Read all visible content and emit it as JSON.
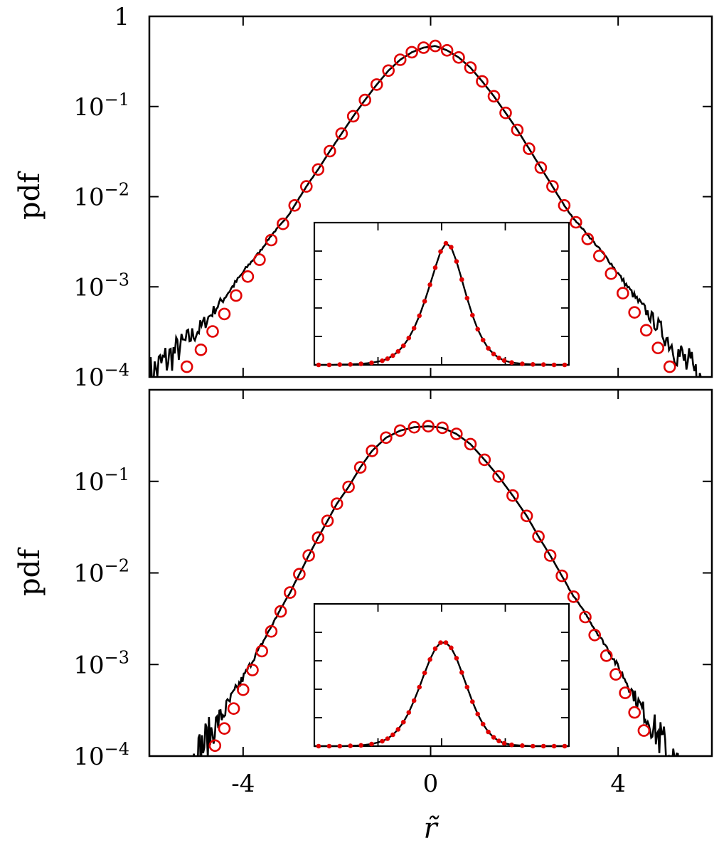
{
  "chart_data": [
    {
      "type": "line",
      "panel": "top",
      "ylabel": "pdf",
      "xlabel": "",
      "yscale": "log",
      "xlim": [
        -6,
        6
      ],
      "ylim": [
        0.0001,
        1
      ],
      "y_tick_labels": [
        {
          "value": 1,
          "base": "1",
          "exp": ""
        },
        {
          "value": 0.1,
          "base": "10",
          "exp": "−1"
        },
        {
          "value": 0.01,
          "base": "10",
          "exp": "−2"
        },
        {
          "value": 0.001,
          "base": "10",
          "exp": "−3"
        },
        {
          "value": 0.0001,
          "base": "10",
          "exp": "−4"
        }
      ],
      "x_ticks": [
        -4,
        0,
        4
      ],
      "x_tick_labels_shown": false,
      "series": [
        {
          "style": "solid-black-noisy-line",
          "color": "#000000",
          "x_range": [
            -6,
            6
          ],
          "peak": 0.47
        },
        {
          "style": "open-circles",
          "color": "#e00000",
          "x": [
            -5.2,
            -4.9,
            -4.65,
            -4.4,
            -4.15,
            -3.9,
            -3.65,
            -3.4,
            -3.15,
            -2.9,
            -2.65,
            -2.4,
            -2.15,
            -1.9,
            -1.65,
            -1.4,
            -1.15,
            -0.9,
            -0.65,
            -0.4,
            -0.15,
            0.1,
            0.35,
            0.6,
            0.85,
            1.1,
            1.35,
            1.6,
            1.85,
            2.1,
            2.35,
            2.6,
            2.85,
            3.1,
            3.35,
            3.6,
            3.85,
            4.1,
            4.35,
            4.6,
            4.85,
            5.1
          ],
          "y": [
            0.00013,
            0.0002,
            0.00032,
            0.0005,
            0.0008,
            0.0013,
            0.002,
            0.0033,
            0.005,
            0.008,
            0.013,
            0.02,
            0.032,
            0.05,
            0.078,
            0.118,
            0.175,
            0.25,
            0.33,
            0.4,
            0.45,
            0.47,
            0.42,
            0.35,
            0.27,
            0.19,
            0.13,
            0.085,
            0.055,
            0.034,
            0.021,
            0.013,
            0.008,
            0.0052,
            0.0034,
            0.0022,
            0.0014,
            0.00085,
            0.00052,
            0.00033,
            0.00021,
            0.00013
          ]
        }
      ],
      "inset": {
        "type": "line",
        "yscale": "linear",
        "xlim": [
          -6,
          6
        ],
        "ylim": [
          0,
          0.55
        ],
        "series": [
          {
            "style": "solid-black-line",
            "color": "#000000"
          },
          {
            "style": "filled-dots",
            "color": "#e00000",
            "x": [
              -5.8,
              -5.3,
              -4.8,
              -4.3,
              -3.8,
              -3.3,
              -2.8,
              -2.55,
              -2.3,
              -2.05,
              -1.8,
              -1.55,
              -1.3,
              -1.05,
              -0.8,
              -0.55,
              -0.3,
              -0.05,
              0.2,
              0.45,
              0.7,
              0.95,
              1.2,
              1.45,
              1.7,
              1.95,
              2.2,
              2.45,
              2.7,
              2.95,
              3.3,
              3.8,
              4.3,
              4.8,
              5.3,
              5.8
            ],
            "y": [
              0,
              0,
              0.001,
              0.002,
              0.004,
              0.008,
              0.016,
              0.024,
              0.036,
              0.052,
              0.074,
              0.104,
              0.142,
              0.19,
              0.246,
              0.31,
              0.376,
              0.438,
              0.47,
              0.455,
              0.4,
              0.33,
              0.258,
              0.192,
              0.138,
              0.096,
              0.064,
              0.042,
              0.027,
              0.017,
              0.009,
              0.004,
              0.002,
              0.001,
              0,
              0
            ]
          }
        ]
      }
    },
    {
      "type": "line",
      "panel": "bottom",
      "ylabel": "pdf",
      "xlabel": "r̃",
      "yscale": "log",
      "xlim": [
        -6,
        6
      ],
      "ylim": [
        0.0001,
        1
      ],
      "y_tick_labels": [
        {
          "value": 0.1,
          "base": "10",
          "exp": "−1"
        },
        {
          "value": 0.01,
          "base": "10",
          "exp": "−2"
        },
        {
          "value": 0.001,
          "base": "10",
          "exp": "−3"
        },
        {
          "value": 0.0001,
          "base": "10",
          "exp": "−4"
        }
      ],
      "x_ticks": [
        -4,
        0,
        4
      ],
      "x_tick_labels": [
        "-4",
        "0",
        "4"
      ],
      "series": [
        {
          "style": "solid-black-noisy-line",
          "color": "#000000",
          "x_range": [
            -5.1,
            5.3
          ],
          "peak": 0.4
        },
        {
          "style": "open-circles",
          "color": "#e00000",
          "x": [
            -4.6,
            -4.4,
            -4.2,
            -4.0,
            -3.8,
            -3.6,
            -3.4,
            -3.2,
            -3.0,
            -2.8,
            -2.6,
            -2.4,
            -2.2,
            -2.0,
            -1.75,
            -1.5,
            -1.25,
            -0.95,
            -0.65,
            -0.35,
            -0.05,
            0.25,
            0.55,
            0.85,
            1.15,
            1.45,
            1.75,
            2.05,
            2.3,
            2.55,
            2.8,
            3.05,
            3.3,
            3.5,
            3.75,
            3.95,
            4.15,
            4.35,
            4.55
          ],
          "y": [
            0.00013,
            0.0002,
            0.00033,
            0.00053,
            0.00087,
            0.0014,
            0.0023,
            0.0038,
            0.0061,
            0.0097,
            0.0155,
            0.0243,
            0.037,
            0.057,
            0.087,
            0.142,
            0.215,
            0.3,
            0.358,
            0.39,
            0.4,
            0.385,
            0.33,
            0.255,
            0.172,
            0.113,
            0.07,
            0.042,
            0.025,
            0.0155,
            0.0093,
            0.0055,
            0.0033,
            0.0021,
            0.00125,
            0.00078,
            0.00049,
            0.0003,
            0.00019
          ]
        }
      ],
      "inset": {
        "type": "line",
        "yscale": "linear",
        "xlim": [
          -6,
          6
        ],
        "ylim": [
          0,
          0.55
        ],
        "series": [
          {
            "style": "solid-black-line",
            "color": "#000000"
          },
          {
            "style": "filled-dots",
            "color": "#e00000",
            "x": [
              -5.8,
              -5.3,
              -4.8,
              -4.3,
              -3.8,
              -3.3,
              -2.8,
              -2.55,
              -2.3,
              -2.05,
              -1.8,
              -1.55,
              -1.3,
              -1.05,
              -0.8,
              -0.55,
              -0.3,
              -0.05,
              0.2,
              0.45,
              0.7,
              0.95,
              1.2,
              1.45,
              1.7,
              1.95,
              2.2,
              2.45,
              2.7,
              2.95,
              3.3,
              3.8,
              4.3,
              4.8,
              5.3,
              5.8
            ],
            "y": [
              0,
              0,
              0,
              0.001,
              0.003,
              0.008,
              0.019,
              0.029,
              0.044,
              0.065,
              0.093,
              0.13,
              0.176,
              0.228,
              0.283,
              0.335,
              0.377,
              0.4,
              0.4,
              0.38,
              0.34,
              0.285,
              0.228,
              0.172,
              0.124,
              0.085,
              0.055,
              0.034,
              0.02,
              0.011,
              0.005,
              0.002,
              0,
              0,
              0,
              0
            ]
          }
        ]
      }
    }
  ]
}
